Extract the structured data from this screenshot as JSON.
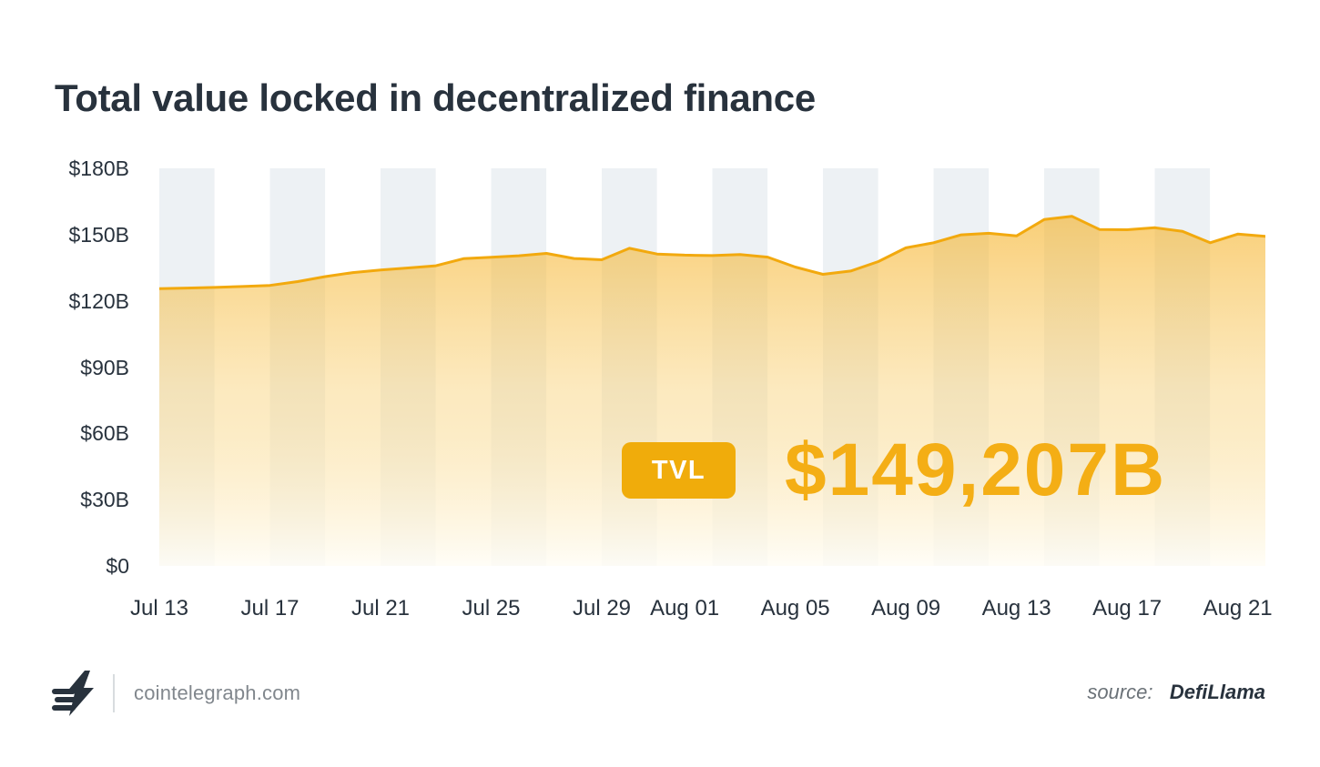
{
  "title": "Total value locked in decentralized finance",
  "annotation": {
    "badge_label": "TVL",
    "value": "$149,207B",
    "latest_value_busd": 149.207
  },
  "footer": {
    "logo_icon": "cointelegraph-coins-bolt-logo",
    "brand": "cointelegraph.com",
    "source_label": "source:",
    "source_value": "DefiLlama"
  },
  "colors": {
    "text_dark": "#28323D",
    "text_gray": "#81878D",
    "source_gray": "#6B7278",
    "divider": "#D8DCDF",
    "accent_line": "#F2A90E",
    "badge_bg": "#F0AC0B",
    "value_text": "#F4AE15",
    "stripe": "#EDF1F4",
    "area_top": "#F5B125",
    "area_mid": "#F9D47F",
    "area_bottom": "#FFFDF5"
  },
  "chart_data": {
    "type": "area",
    "title": "Total value locked in decentralized finance",
    "unit": "billion USD",
    "ylabel": "",
    "xlabel": "",
    "ylim": [
      0,
      180
    ],
    "grid": "vertical-stripes",
    "legend": "none",
    "x": [
      "Jul 13",
      "Jul 14",
      "Jul 15",
      "Jul 16",
      "Jul 17",
      "Jul 18",
      "Jul 19",
      "Jul 20",
      "Jul 21",
      "Jul 22",
      "Jul 23",
      "Jul 24",
      "Jul 25",
      "Jul 26",
      "Jul 27",
      "Jul 28",
      "Jul 29",
      "Jul 30",
      "Jul 31",
      "Aug 01",
      "Aug 02",
      "Aug 03",
      "Aug 04",
      "Aug 05",
      "Aug 06",
      "Aug 07",
      "Aug 08",
      "Aug 09",
      "Aug 10",
      "Aug 11",
      "Aug 12",
      "Aug 13",
      "Aug 14",
      "Aug 15",
      "Aug 16",
      "Aug 17",
      "Aug 18",
      "Aug 19",
      "Aug 20",
      "Aug 21",
      "Aug 22"
    ],
    "values": [
      125.5,
      125.8,
      126.1,
      126.5,
      127.0,
      128.7,
      131.0,
      132.8,
      134.0,
      134.9,
      135.9,
      139.1,
      139.7,
      140.4,
      141.5,
      139.2,
      138.6,
      143.8,
      141.2,
      140.7,
      140.5,
      141.0,
      139.8,
      135.3,
      132.0,
      133.5,
      137.8,
      144.0,
      146.3,
      149.9,
      150.6,
      149.4,
      156.8,
      158.3,
      152.3,
      152.2,
      153.1,
      151.5,
      146.3,
      150.2,
      149.2
    ],
    "x_tick_labels": [
      "Jul 13",
      "Jul 17",
      "Jul 21",
      "Jul 25",
      "Jul 29",
      "Aug 01",
      "Aug 05",
      "Aug 09",
      "Aug 13",
      "Aug 17",
      "Aug 21"
    ],
    "x_tick_day_indices": [
      0,
      4,
      8,
      12,
      16,
      19,
      23,
      27,
      31,
      35,
      39
    ],
    "y_tick_values": [
      180,
      150,
      120,
      90,
      60,
      30,
      0
    ],
    "y_tick_labels": [
      "$180B",
      "$150B",
      "$120B",
      "$90B",
      "$60B",
      "$30B",
      "$0"
    ]
  }
}
